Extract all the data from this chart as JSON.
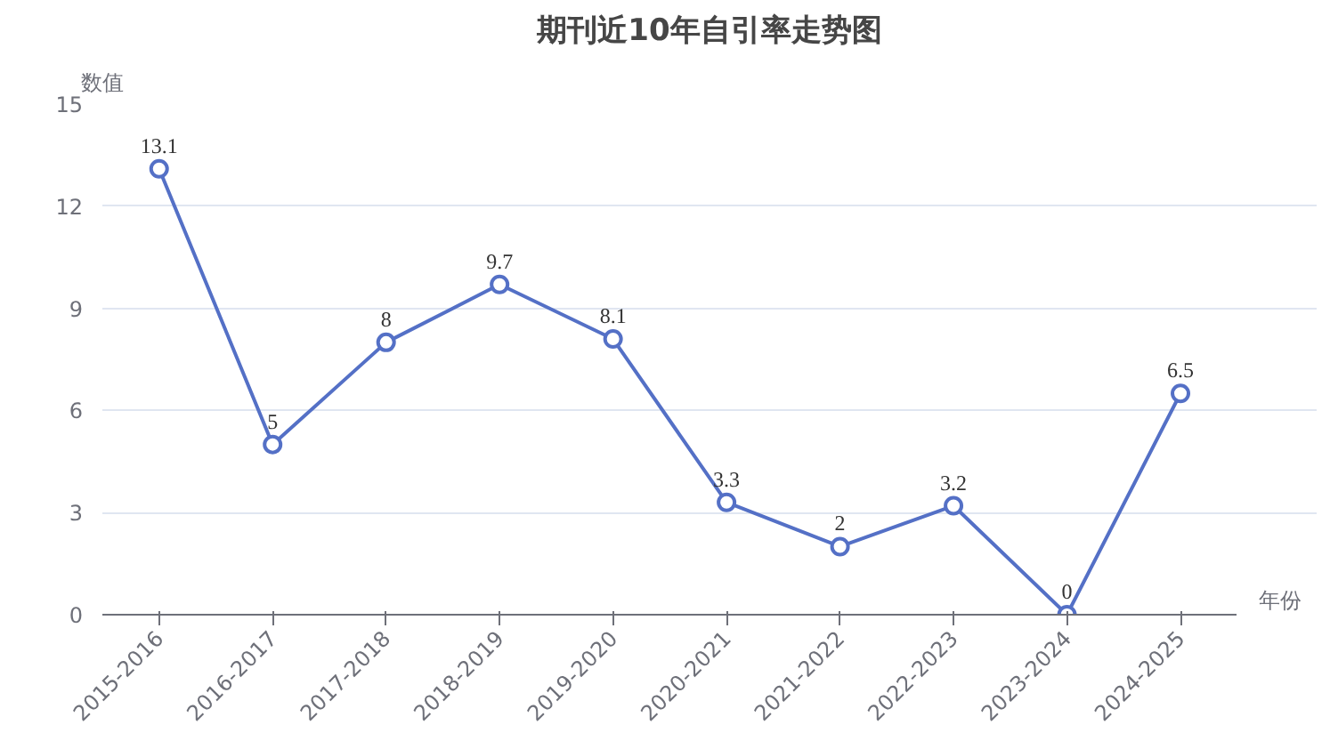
{
  "chart_data": {
    "type": "line",
    "title": "期刊近10年自引率走势图",
    "xlabel": "年份",
    "ylabel": "数值",
    "categories": [
      "2015-2016",
      "2016-2017",
      "2017-2018",
      "2018-2019",
      "2019-2020",
      "2020-2021",
      "2021-2022",
      "2022-2023",
      "2023-2024",
      "2024-2025"
    ],
    "series": [
      {
        "color": "#5470c6",
        "values": [
          13.1,
          5,
          8,
          9.7,
          8.1,
          3.3,
          2,
          3.2,
          0,
          6.5
        ]
      }
    ],
    "ylim": [
      0,
      15
    ],
    "yticks": [
      0,
      3,
      6,
      9,
      12,
      15
    ],
    "grid": "y",
    "marker": "circle",
    "line_style": "solid",
    "data_labels": true
  }
}
